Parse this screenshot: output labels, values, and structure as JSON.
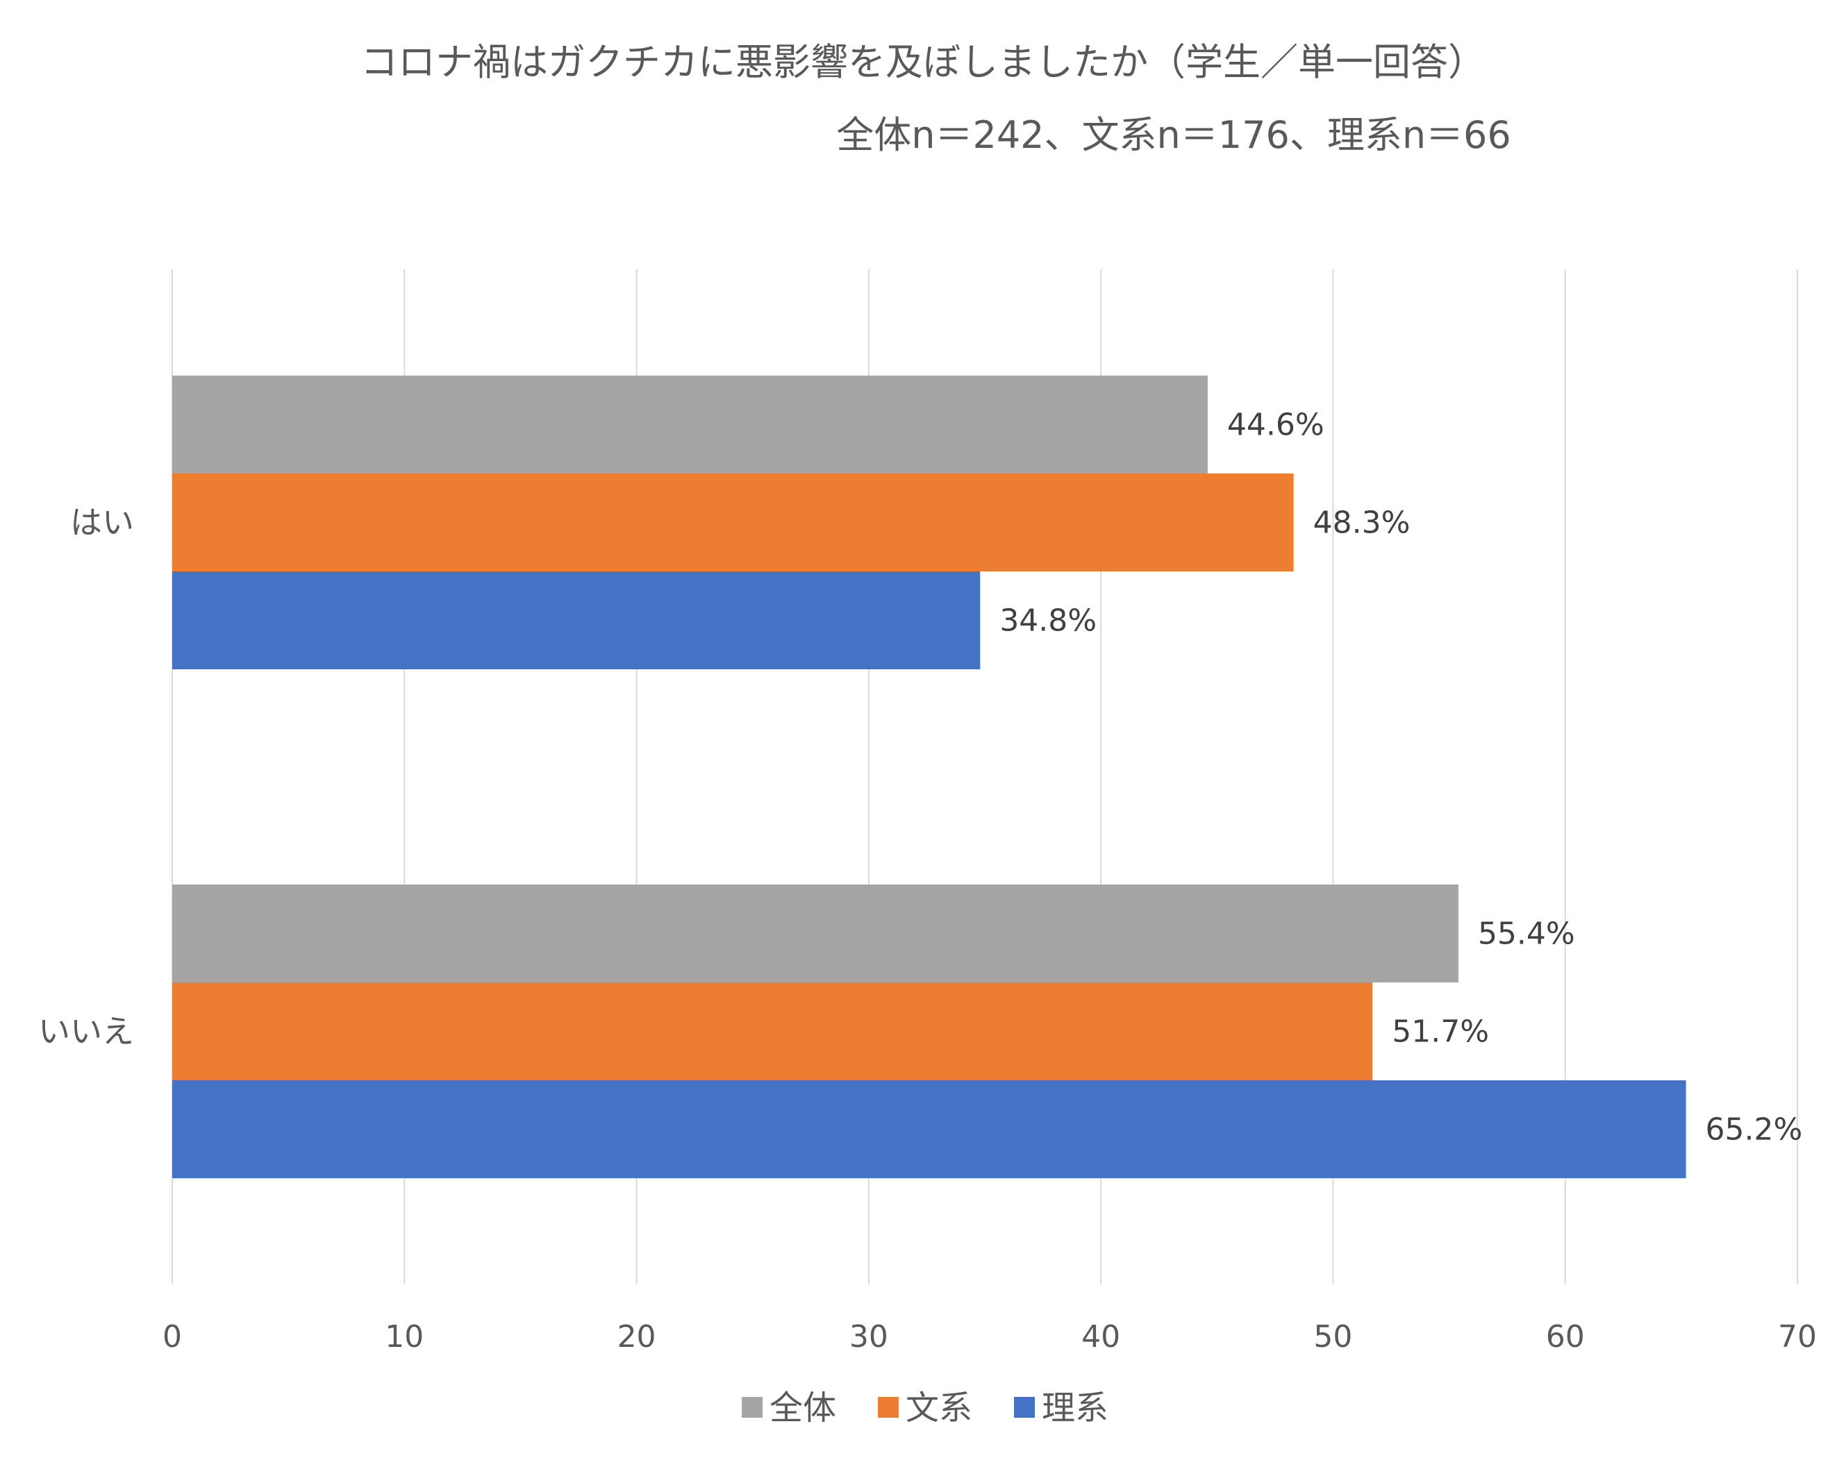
{
  "chart_data": {
    "type": "bar",
    "orientation": "horizontal",
    "title": "コロナ禍はガクチカに悪影響を及ぼしましたか（学生／単一回答）",
    "subtitle": "全体n＝242、文系n＝176、理系n＝66",
    "categories": [
      "はい",
      "いいえ"
    ],
    "series": [
      {
        "name": "全体",
        "color": "#A5A5A5",
        "values": [
          44.6,
          55.4
        ],
        "labels": [
          "44.6%",
          "55.4%"
        ]
      },
      {
        "name": "文系",
        "color": "#ED7D31",
        "values": [
          48.3,
          51.7
        ],
        "labels": [
          "48.3%",
          "51.7%"
        ]
      },
      {
        "name": "理系",
        "color": "#4472C4",
        "values": [
          34.8,
          65.2
        ],
        "labels": [
          "34.8%",
          "65.2%"
        ]
      }
    ],
    "xlim": [
      0,
      70
    ],
    "xticks": [
      0,
      10,
      20,
      30,
      40,
      50,
      60,
      70
    ],
    "grid": "vertical",
    "legend": "bottom",
    "gridColor": "#D9D9D9"
  }
}
